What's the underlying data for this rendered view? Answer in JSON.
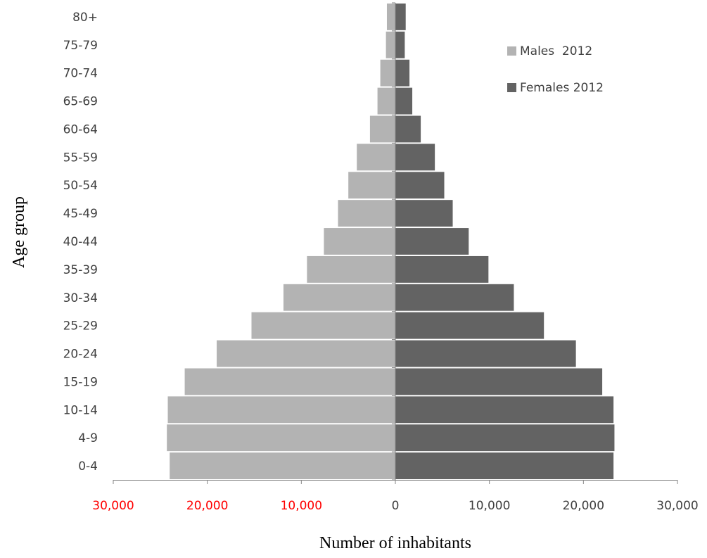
{
  "chart_data": {
    "type": "bar",
    "orientation": "horizontal",
    "layout": "population-pyramid",
    "categories": [
      "0-4",
      "4-9",
      "10-14",
      "15-19",
      "20-24",
      "25-29",
      "30-34",
      "35-39",
      "40-44",
      "45-49",
      "50-54",
      "55-59",
      "60-64",
      "65-69",
      "70-74",
      "75-79",
      "80+"
    ],
    "series": [
      {
        "name": "Males  2012",
        "side": "left",
        "color": "#b3b3b3",
        "values": [
          24000,
          24300,
          24200,
          22400,
          19000,
          15300,
          11900,
          9400,
          7600,
          6100,
          5000,
          4100,
          2700,
          1900,
          1600,
          1000,
          900
        ]
      },
      {
        "name": "Females 2012",
        "side": "right",
        "color": "#636363",
        "values": [
          23200,
          23300,
          23200,
          22000,
          19200,
          15800,
          12600,
          9900,
          7800,
          6100,
          5200,
          4200,
          2700,
          1800,
          1500,
          1000,
          1100
        ]
      }
    ],
    "xlabel": "Number of inhabitants",
    "ylabel": "Age group",
    "xlim": [
      -30000,
      30000
    ],
    "x_ticks": [
      {
        "value": -30000,
        "label": "30,000",
        "color": "#ff0000"
      },
      {
        "value": -20000,
        "label": "20,000",
        "color": "#ff0000"
      },
      {
        "value": -10000,
        "label": "10,000",
        "color": "#ff0000"
      },
      {
        "value": 0,
        "label": "0",
        "color": "#404040"
      },
      {
        "value": 10000,
        "label": "10,000",
        "color": "#404040"
      },
      {
        "value": 20000,
        "label": "20,000",
        "color": "#404040"
      },
      {
        "value": 30000,
        "label": "30,000",
        "color": "#404040"
      }
    ],
    "legend_position": "top-right",
    "grid": false
  }
}
